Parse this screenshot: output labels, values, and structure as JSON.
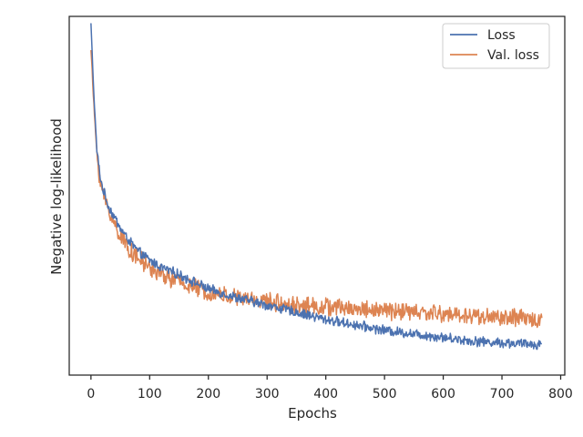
{
  "chart_data": {
    "type": "line",
    "title": "",
    "xlabel": "Epochs",
    "ylabel": "Negative log-likelihood",
    "xlim": [
      -37,
      807
    ],
    "ylim": [
      0.0,
      1.0
    ],
    "y_ticks_shown": false,
    "x_ticks": [
      0,
      100,
      200,
      300,
      400,
      500,
      600,
      700,
      800
    ],
    "x_tick_labels": [
      "0",
      "100",
      "200",
      "300",
      "400",
      "500",
      "600",
      "700",
      "800"
    ],
    "grid": false,
    "legend": {
      "placement": "top-right",
      "entries": [
        "Loss",
        "Val. loss"
      ]
    },
    "series": [
      {
        "name": "Loss",
        "color": "#4c72b0",
        "noise": 0.012,
        "x": [
          0,
          5,
          10,
          15,
          20,
          30,
          40,
          50,
          60,
          70,
          80,
          100,
          120,
          150,
          200,
          250,
          300,
          350,
          400,
          450,
          500,
          550,
          600,
          650,
          700,
          768
        ],
        "y": [
          0.98,
          0.78,
          0.63,
          0.56,
          0.52,
          0.47,
          0.44,
          0.41,
          0.385,
          0.365,
          0.345,
          0.32,
          0.3,
          0.28,
          0.24,
          0.215,
          0.195,
          0.175,
          0.155,
          0.14,
          0.125,
          0.115,
          0.105,
          0.095,
          0.09,
          0.085
        ]
      },
      {
        "name": "Val. loss",
        "color": "#dd8452",
        "noise": 0.022,
        "x": [
          0,
          5,
          10,
          15,
          20,
          30,
          40,
          50,
          60,
          70,
          80,
          100,
          120,
          150,
          200,
          250,
          300,
          350,
          400,
          450,
          500,
          550,
          600,
          650,
          700,
          768
        ],
        "y": [
          0.91,
          0.75,
          0.62,
          0.55,
          0.51,
          0.46,
          0.42,
          0.39,
          0.365,
          0.34,
          0.325,
          0.3,
          0.28,
          0.26,
          0.23,
          0.215,
          0.205,
          0.195,
          0.19,
          0.185,
          0.18,
          0.175,
          0.17,
          0.165,
          0.16,
          0.155
        ]
      }
    ]
  }
}
